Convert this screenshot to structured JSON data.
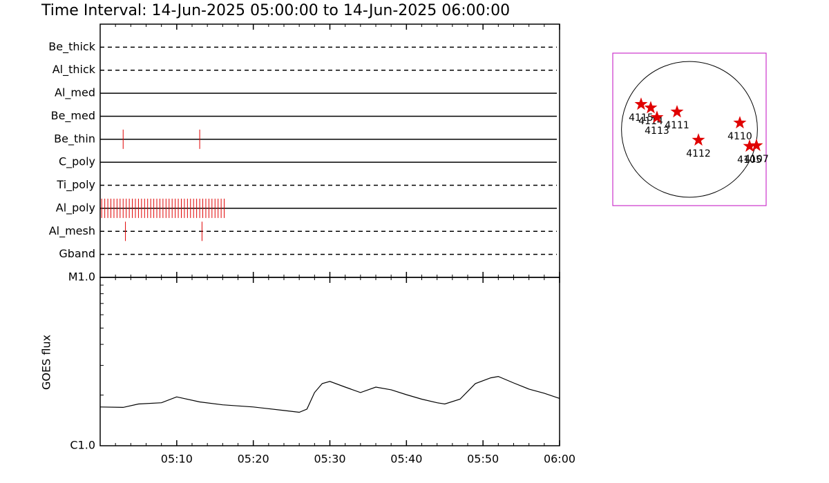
{
  "chart_data": [
    {
      "type": "timeline",
      "title": "Time Interval: 14-Jun-2025 05:00:00 to 14-Jun-2025 06:00:00",
      "xlim": [
        0,
        60
      ],
      "xticks": [
        {
          "value": 10,
          "label": "05:10"
        },
        {
          "value": 20,
          "label": "05:20"
        },
        {
          "value": 30,
          "label": "05:30"
        },
        {
          "value": 40,
          "label": "05:40"
        },
        {
          "value": 50,
          "label": "05:50"
        },
        {
          "value": 60,
          "label": "06:00"
        }
      ],
      "xminor": [
        2,
        4,
        6,
        8,
        12,
        14,
        16,
        18,
        22,
        24,
        26,
        28,
        32,
        34,
        36,
        38,
        42,
        44,
        46,
        48,
        52,
        54,
        56,
        58
      ],
      "color": "#e00000",
      "rows": [
        {
          "name": "Be_thick",
          "dashed": true,
          "times": []
        },
        {
          "name": "Al_thick",
          "dashed": true,
          "times": []
        },
        {
          "name": "Al_med",
          "dashed": false,
          "times": []
        },
        {
          "name": "Be_med",
          "dashed": false,
          "times": []
        },
        {
          "name": "Be_thin",
          "dashed": false,
          "times": [
            3.0,
            13.0
          ]
        },
        {
          "name": "C_poly",
          "dashed": false,
          "times": []
        },
        {
          "name": "Ti_poly",
          "dashed": true,
          "times": []
        },
        {
          "name": "Al_poly",
          "dashed": false,
          "times": [
            0.2,
            0.6,
            1.0,
            1.4,
            1.8,
            2.2,
            2.6,
            3.0,
            3.4,
            3.8,
            4.2,
            4.6,
            5.0,
            5.4,
            5.8,
            6.2,
            6.6,
            7.0,
            7.4,
            7.8,
            8.2,
            8.6,
            9.0,
            9.4,
            9.8,
            10.2,
            10.6,
            11.0,
            11.4,
            11.8,
            12.2,
            12.6,
            13.0,
            13.4,
            13.8,
            14.2,
            14.6,
            15.0,
            15.4,
            15.8,
            16.2
          ]
        },
        {
          "name": "Al_mesh",
          "dashed": true,
          "times": [
            3.3,
            13.3
          ]
        },
        {
          "name": "Gband",
          "dashed": true,
          "times": []
        }
      ]
    },
    {
      "type": "line",
      "ylabel": "GOES flux",
      "log_scale": true,
      "ylim": [
        1e-06,
        1e-05
      ],
      "yticks": [
        {
          "value": 1e-06,
          "label": "C1.0"
        },
        {
          "value": 1e-05,
          "label": "M1.0"
        }
      ],
      "yminor": [
        2e-06,
        3e-06,
        4e-06,
        5e-06,
        6e-06,
        7e-06,
        8e-06,
        9e-06
      ],
      "xlim": [
        0,
        60
      ],
      "series": [
        {
          "color": "#000000",
          "x": [
            0,
            3,
            5,
            8,
            10,
            13,
            16,
            20,
            24,
            26,
            27,
            28,
            29,
            30,
            32,
            34,
            36,
            38,
            40,
            42,
            44,
            45,
            47,
            49,
            51,
            52,
            54,
            56,
            58,
            60
          ],
          "values": [
            1.7e-06,
            1.69e-06,
            1.77e-06,
            1.8e-06,
            1.95e-06,
            1.82e-06,
            1.75e-06,
            1.7e-06,
            1.62e-06,
            1.58e-06,
            1.65e-06,
            2.07e-06,
            2.34e-06,
            2.41e-06,
            2.23e-06,
            2.07e-06,
            2.23e-06,
            2.15e-06,
            2.01e-06,
            1.89e-06,
            1.8e-06,
            1.77e-06,
            1.89e-06,
            2.34e-06,
            2.53e-06,
            2.58e-06,
            2.36e-06,
            2.17e-06,
            2.05e-06,
            1.91e-06
          ]
        }
      ]
    },
    {
      "type": "map",
      "xlim": [
        -1100,
        1100
      ],
      "ylim": [
        -1100,
        1100
      ],
      "radius": 975,
      "color": "#e00000",
      "frame_color": "#cc33cc",
      "regions": [
        {
          "name": "4115",
          "x": -694,
          "y": 362
        },
        {
          "name": "4114",
          "x": -555,
          "y": 312
        },
        {
          "name": "4113",
          "x": -466,
          "y": 173
        },
        {
          "name": "4111",
          "x": -178,
          "y": 253
        },
        {
          "name": "4112",
          "x": 129,
          "y": -154
        },
        {
          "name": "4110",
          "x": 723,
          "y": 94
        },
        {
          "name": "4105",
          "x": 862,
          "y": -243
        },
        {
          "name": "4107",
          "x": 961,
          "y": -233
        }
      ]
    }
  ]
}
